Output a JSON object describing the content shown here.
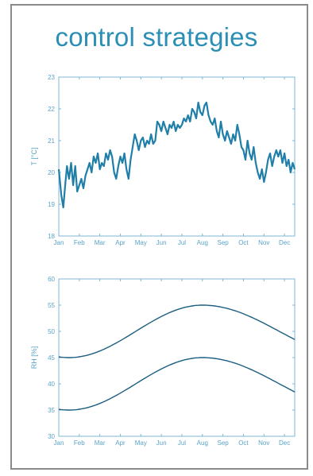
{
  "header": {
    "title": "control strategies"
  },
  "colors": {
    "accent": "#2b8fb5",
    "line1": "#1f7fa8",
    "line2": "#1c5e80",
    "axis": "#7fb6d2",
    "tick": "#5aa3c6"
  },
  "chart_data": [
    {
      "type": "line",
      "title": "",
      "xlabel": "",
      "ylabel": "T [°C]",
      "categories": [
        "Jan",
        "Feb",
        "Mar",
        "Apr",
        "May",
        "Jun",
        "Jul",
        "Aug",
        "Sep",
        "Oct",
        "Nov",
        "Dec"
      ],
      "ylim": [
        18,
        23
      ],
      "yticks": [
        "18",
        "19",
        "20",
        "21",
        "22",
        "23"
      ],
      "xlim": [
        0,
        11.5
      ],
      "grid": false,
      "series": [
        {
          "name": "",
          "x": [
            0,
            0.12,
            0.22,
            0.3,
            0.4,
            0.5,
            0.6,
            0.7,
            0.8,
            0.9,
            1.0,
            1.1,
            1.2,
            1.3,
            1.4,
            1.5,
            1.6,
            1.7,
            1.8,
            1.9,
            2.0,
            2.1,
            2.2,
            2.3,
            2.4,
            2.5,
            2.6,
            2.7,
            2.8,
            2.9,
            3.0,
            3.1,
            3.2,
            3.3,
            3.4,
            3.5,
            3.6,
            3.7,
            3.8,
            3.9,
            4.0,
            4.1,
            4.2,
            4.3,
            4.4,
            4.5,
            4.6,
            4.7,
            4.8,
            4.9,
            5.0,
            5.1,
            5.2,
            5.3,
            5.4,
            5.5,
            5.6,
            5.7,
            5.8,
            5.9,
            6.0,
            6.1,
            6.2,
            6.3,
            6.4,
            6.5,
            6.6,
            6.7,
            6.8,
            6.9,
            7.0,
            7.1,
            7.2,
            7.3,
            7.4,
            7.5,
            7.6,
            7.7,
            7.8,
            7.9,
            8.0,
            8.1,
            8.2,
            8.3,
            8.4,
            8.5,
            8.6,
            8.7,
            8.8,
            8.9,
            9.0,
            9.1,
            9.2,
            9.3,
            9.4,
            9.5,
            9.6,
            9.7,
            9.8,
            9.9,
            10.0,
            10.1,
            10.2,
            10.3,
            10.4,
            10.5,
            10.6,
            10.7,
            10.8,
            10.9,
            11.0,
            11.1,
            11.2,
            11.3,
            11.4,
            11.5
          ],
          "values": [
            20.1,
            19.3,
            18.9,
            19.5,
            20.2,
            19.8,
            20.3,
            19.6,
            20.2,
            19.4,
            19.6,
            19.8,
            19.5,
            19.9,
            20.1,
            20.3,
            20.0,
            20.5,
            20.3,
            20.6,
            20.1,
            20.3,
            20.2,
            20.6,
            20.4,
            20.7,
            20.5,
            20.0,
            19.8,
            20.2,
            20.5,
            20.3,
            20.6,
            20.1,
            19.8,
            20.4,
            20.8,
            21.2,
            21.0,
            20.7,
            21.0,
            21.1,
            20.8,
            21.0,
            20.9,
            21.2,
            20.9,
            21.0,
            21.6,
            21.5,
            21.3,
            21.6,
            21.4,
            21.2,
            21.5,
            21.4,
            21.6,
            21.3,
            21.5,
            21.4,
            21.5,
            21.7,
            21.6,
            21.8,
            21.6,
            22.0,
            21.9,
            21.7,
            22.2,
            21.9,
            21.8,
            22.1,
            22.2,
            21.8,
            21.6,
            21.5,
            21.7,
            21.3,
            21.1,
            21.6,
            21.2,
            21.0,
            21.3,
            21.1,
            20.9,
            21.2,
            21.0,
            21.5,
            21.2,
            20.8,
            20.7,
            20.4,
            21.0,
            20.6,
            20.4,
            20.8,
            20.3,
            20.0,
            19.8,
            20.1,
            19.7,
            20.0,
            20.4,
            20.6,
            20.2,
            20.5,
            20.7,
            20.5,
            20.7,
            20.3,
            20.6,
            20.2,
            20.4,
            20.0,
            20.3,
            20.1
          ]
        }
      ]
    },
    {
      "type": "line",
      "title": "",
      "xlabel": "",
      "ylabel": "RH [%]",
      "categories": [
        "Jan",
        "Feb",
        "Mar",
        "Apr",
        "May",
        "Jun",
        "Jul",
        "Aug",
        "Sep",
        "Oct",
        "Nov",
        "Dec"
      ],
      "ylim": [
        30,
        60
      ],
      "yticks": [
        "30",
        "35",
        "40",
        "45",
        "50",
        "55",
        "60"
      ],
      "xlim": [
        0,
        11.5
      ],
      "grid": false,
      "series": [
        {
          "name": "",
          "min": 45,
          "max": 55,
          "peak_x": 7
        },
        {
          "name": "",
          "min": 35,
          "max": 45,
          "peak_x": 7
        }
      ]
    }
  ]
}
